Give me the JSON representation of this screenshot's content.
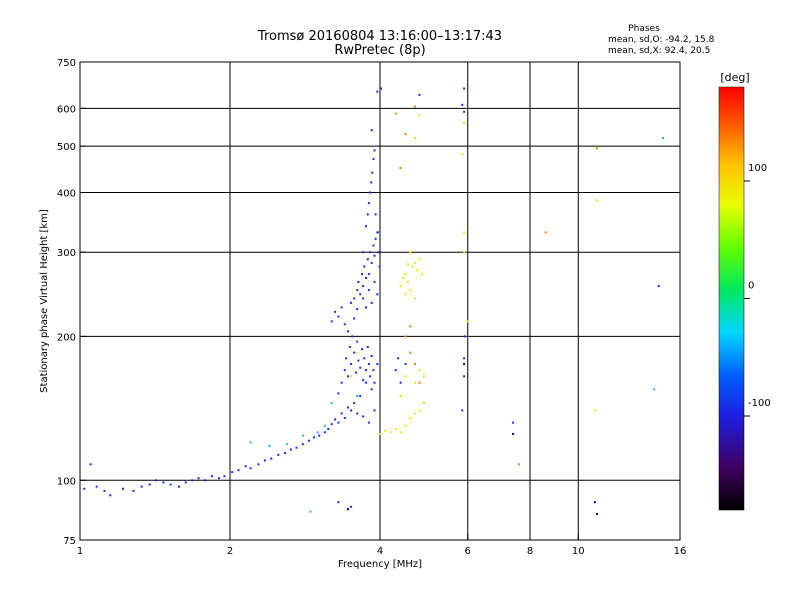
{
  "title_line1": "Tromsø 20160804 13:16:00–13:17:43",
  "title_line2": "RwPretec (8p)",
  "stats": {
    "header": "Phases",
    "line_o": "mean, sd,O: -94.2, 15.8",
    "line_x": "mean, sd,X:  92.4, 20.5"
  },
  "colorbar": {
    "unit": "[deg]",
    "range": [
      -180,
      180
    ],
    "ticks": [
      {
        "value": 100,
        "label": "100"
      },
      {
        "value": 0,
        "label": "0"
      },
      {
        "value": -100,
        "label": "-100"
      }
    ]
  },
  "chart_data": {
    "type": "scatter",
    "xlabel": "Frequency [MHz]",
    "ylabel": "Stationary phase Virtual Height [km]",
    "xscale": "log",
    "yscale": "log",
    "xlim": [
      1,
      16
    ],
    "ylim": [
      75,
      750
    ],
    "grid": true,
    "xticks": [
      {
        "value": 1,
        "label": "1"
      },
      {
        "value": 2,
        "label": "2"
      },
      {
        "value": 4,
        "label": "4"
      },
      {
        "value": 6,
        "label": "6"
      },
      {
        "value": 8,
        "label": "8"
      },
      {
        "value": 10,
        "label": "10"
      },
      {
        "value": 16,
        "label": "16"
      }
    ],
    "yticks": [
      {
        "value": 75,
        "label": "75"
      },
      {
        "value": 100,
        "label": "100"
      },
      {
        "value": 200,
        "label": "200"
      },
      {
        "value": 300,
        "label": "300"
      },
      {
        "value": 400,
        "label": "400"
      },
      {
        "value": 500,
        "label": "500"
      },
      {
        "value": 600,
        "label": "600"
      },
      {
        "value": 750,
        "label": "750"
      }
    ],
    "series": [
      {
        "color": "#1a2fe0",
        "points": [
          [
            1.02,
            96
          ],
          [
            1.05,
            108
          ],
          [
            1.08,
            97
          ],
          [
            1.12,
            95
          ],
          [
            1.15,
            93
          ],
          [
            1.22,
            96
          ],
          [
            1.28,
            95
          ],
          [
            1.33,
            97
          ],
          [
            1.38,
            98
          ],
          [
            1.42,
            100
          ],
          [
            1.47,
            99
          ],
          [
            1.52,
            98
          ],
          [
            1.58,
            97
          ],
          [
            1.63,
            99
          ],
          [
            1.68,
            100
          ],
          [
            1.73,
            101
          ],
          [
            1.78,
            100
          ],
          [
            1.84,
            102
          ],
          [
            1.9,
            101
          ],
          [
            1.95,
            102
          ],
          [
            2.02,
            104
          ],
          [
            2.08,
            105
          ],
          [
            2.15,
            107
          ],
          [
            2.2,
            106
          ],
          [
            2.28,
            108
          ],
          [
            2.35,
            110
          ],
          [
            2.42,
            111
          ],
          [
            2.5,
            113
          ],
          [
            2.58,
            114
          ],
          [
            2.65,
            116
          ],
          [
            2.72,
            117
          ],
          [
            2.8,
            119
          ],
          [
            2.88,
            121
          ],
          [
            2.95,
            123
          ],
          [
            3.02,
            124
          ],
          [
            3.1,
            126
          ],
          [
            3.15,
            128
          ],
          [
            3.2,
            131
          ],
          [
            3.25,
            134
          ],
          [
            3.3,
            132
          ],
          [
            3.35,
            138
          ],
          [
            3.4,
            135
          ],
          [
            3.45,
            142
          ],
          [
            3.5,
            140
          ],
          [
            3.55,
            145
          ],
          [
            3.6,
            138
          ],
          [
            3.65,
            150
          ],
          [
            3.7,
            136
          ],
          [
            3.75,
            160
          ],
          [
            3.8,
            132
          ],
          [
            3.85,
            155
          ],
          [
            3.9,
            140
          ],
          [
            3.3,
            152
          ],
          [
            3.35,
            160
          ],
          [
            3.4,
            170
          ],
          [
            3.42,
            180
          ],
          [
            3.45,
            165
          ],
          [
            3.48,
            190
          ],
          [
            3.5,
            175
          ],
          [
            3.52,
            200
          ],
          [
            3.55,
            185
          ],
          [
            3.58,
            168
          ],
          [
            3.6,
            195
          ],
          [
            3.62,
            178
          ],
          [
            3.65,
            172
          ],
          [
            3.68,
            188
          ],
          [
            3.7,
            162
          ],
          [
            3.72,
            180
          ],
          [
            3.75,
            170
          ],
          [
            3.78,
            190
          ],
          [
            3.8,
            175
          ],
          [
            3.82,
            165
          ],
          [
            3.85,
            182
          ],
          [
            3.88,
            170
          ],
          [
            3.9,
            160
          ],
          [
            3.95,
            175
          ],
          [
            3.2,
            215
          ],
          [
            3.25,
            225
          ],
          [
            3.3,
            220
          ],
          [
            3.35,
            230
          ],
          [
            3.4,
            212
          ],
          [
            3.45,
            205
          ],
          [
            3.5,
            235
          ],
          [
            3.55,
            240
          ],
          [
            3.6,
            250
          ],
          [
            3.62,
            260
          ],
          [
            3.65,
            245
          ],
          [
            3.68,
            270
          ],
          [
            3.7,
            255
          ],
          [
            3.72,
            280
          ],
          [
            3.75,
            265
          ],
          [
            3.78,
            290
          ],
          [
            3.8,
            270
          ],
          [
            3.82,
            300
          ],
          [
            3.85,
            285
          ],
          [
            3.88,
            310
          ],
          [
            3.9,
            295
          ],
          [
            3.92,
            320
          ],
          [
            3.95,
            330
          ],
          [
            3.97,
            300
          ],
          [
            3.99,
            280
          ],
          [
            3.7,
            240
          ],
          [
            3.75,
            230
          ],
          [
            3.8,
            250
          ],
          [
            3.85,
            235
          ],
          [
            3.9,
            260
          ],
          [
            3.95,
            245
          ],
          [
            3.6,
            228
          ],
          [
            3.55,
            218
          ],
          [
            3.7,
            300
          ],
          [
            3.75,
            340
          ],
          [
            3.78,
            360
          ],
          [
            3.8,
            380
          ],
          [
            3.82,
            400
          ],
          [
            3.84,
            420
          ],
          [
            3.86,
            440
          ],
          [
            3.88,
            470
          ],
          [
            3.9,
            490
          ],
          [
            3.85,
            540
          ],
          [
            3.95,
            650
          ],
          [
            4.02,
            660
          ],
          [
            3.92,
            360
          ],
          [
            3.96,
            330
          ],
          [
            4.3,
            170
          ],
          [
            4.35,
            180
          ],
          [
            4.4,
            160
          ],
          [
            4.5,
            175
          ],
          [
            5.9,
            660
          ],
          [
            5.85,
            610
          ],
          [
            5.9,
            590
          ],
          [
            5.92,
            200
          ],
          [
            5.9,
            180
          ],
          [
            5.9,
            165
          ],
          [
            5.85,
            140
          ],
          [
            3.5,
            88
          ],
          [
            3.3,
            90
          ],
          [
            3.45,
            87
          ],
          [
            14.5,
            255
          ],
          [
            7.4,
            132
          ],
          [
            4.8,
            640
          ]
        ]
      },
      {
        "color": "#2aa8ff",
        "points": [
          [
            2.2,
            120
          ],
          [
            2.4,
            118
          ],
          [
            2.6,
            119
          ],
          [
            2.8,
            124
          ],
          [
            3.0,
            126
          ],
          [
            3.2,
            145
          ],
          [
            3.6,
            150
          ],
          [
            2.9,
            86
          ],
          [
            14.8,
            520
          ],
          [
            14.2,
            155
          ],
          [
            3.1,
            130
          ]
        ]
      },
      {
        "color": "#e8e800",
        "points": [
          [
            4.4,
            255
          ],
          [
            4.45,
            265
          ],
          [
            4.5,
            270
          ],
          [
            4.55,
            260
          ],
          [
            4.6,
            250
          ],
          [
            4.65,
            280
          ],
          [
            4.7,
            285
          ],
          [
            4.75,
            275
          ],
          [
            4.8,
            290
          ],
          [
            4.5,
            245
          ],
          [
            4.6,
            300
          ],
          [
            4.7,
            240
          ],
          [
            4.55,
            283
          ],
          [
            4.85,
            270
          ],
          [
            4.0,
            125
          ],
          [
            4.1,
            127
          ],
          [
            4.2,
            126
          ],
          [
            4.3,
            128
          ],
          [
            4.4,
            126
          ],
          [
            4.5,
            130
          ],
          [
            4.6,
            135
          ],
          [
            4.7,
            138
          ],
          [
            4.8,
            140
          ],
          [
            4.9,
            145
          ],
          [
            4.4,
            150
          ],
          [
            4.5,
            165
          ],
          [
            4.7,
            160
          ],
          [
            4.8,
            170
          ],
          [
            4.9,
            165
          ],
          [
            5.9,
            300
          ],
          [
            5.9,
            330
          ],
          [
            5.85,
            480
          ],
          [
            5.9,
            560
          ],
          [
            4.8,
            580
          ],
          [
            4.7,
            520
          ],
          [
            6.0,
            215
          ],
          [
            10.9,
            385
          ],
          [
            10.8,
            140
          ],
          [
            3.5,
            165
          ],
          [
            3.6,
            185
          ]
        ]
      },
      {
        "color": "#ff7a00",
        "points": [
          [
            4.3,
            585
          ],
          [
            4.4,
            450
          ],
          [
            4.5,
            530
          ],
          [
            4.7,
            605
          ],
          [
            4.5,
            200
          ],
          [
            4.6,
            210
          ],
          [
            4.7,
            175
          ],
          [
            8.6,
            330
          ],
          [
            10.9,
            495
          ],
          [
            7.6,
            108
          ],
          [
            4.6,
            185
          ],
          [
            4.8,
            160
          ]
        ]
      },
      {
        "color": "#00107a",
        "points": [
          [
            10.9,
            85
          ],
          [
            10.8,
            90
          ],
          [
            7.4,
            125
          ],
          [
            3.45,
            87
          ],
          [
            5.9,
            175
          ]
        ]
      }
    ]
  }
}
